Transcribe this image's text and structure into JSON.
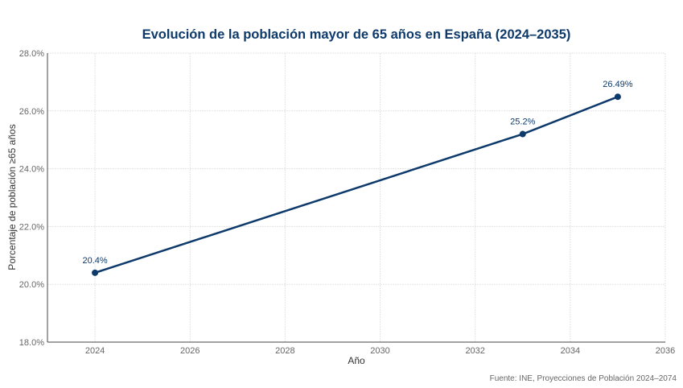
{
  "chart_data": {
    "type": "line",
    "title": "Evolución de la población mayor de 65 años en España (2024–2035)",
    "xlabel": "Año",
    "ylabel": "Porcentaje de población ≥65 años",
    "x": [
      2024,
      2033,
      2035
    ],
    "series": [
      {
        "values": [
          20.4,
          25.2,
          26.49
        ],
        "labels": [
          "20.4%",
          "25.2%",
          "26.49%"
        ],
        "color": "#0d3a6b"
      }
    ],
    "xlim": [
      2023,
      2036
    ],
    "ylim": [
      18,
      28
    ],
    "xticks": [
      "2024",
      "2026",
      "2028",
      "2030",
      "2032",
      "2034",
      "2036"
    ],
    "yticks": [
      "18.0%",
      "20.0%",
      "22.0%",
      "24.0%",
      "26.0%",
      "28.0%"
    ],
    "grid": true,
    "source": "Fuente: INE, Proyecciones de Población 2024–2074"
  }
}
